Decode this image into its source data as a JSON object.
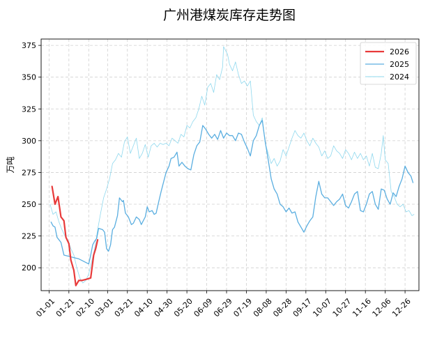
{
  "chart_data": {
    "type": "line",
    "title": "广州港煤炭库存走势图",
    "xlabel": "",
    "ylabel": "万吨",
    "x_tick_labels": [
      "01-01",
      "01-21",
      "02-10",
      "03-01",
      "03-21",
      "04-10",
      "04-30",
      "05-20",
      "06-09",
      "06-29",
      "07-19",
      "08-08",
      "08-28",
      "09-17",
      "10-07",
      "10-27",
      "11-16",
      "12-06",
      "12-26"
    ],
    "x_tick_days": [
      0,
      20,
      40,
      59,
      79,
      99,
      119,
      139,
      159,
      179,
      199,
      219,
      239,
      259,
      279,
      299,
      319,
      339,
      359
    ],
    "xlim": [
      -8,
      373
    ],
    "y_ticks": [
      200,
      225,
      250,
      275,
      300,
      325,
      350,
      375
    ],
    "ylim": [
      182,
      380
    ],
    "grid": true,
    "legend_position": "top-right",
    "series": [
      {
        "name": "2026",
        "color": "#e83a3a",
        "stroke_width": 2.2,
        "points": [
          [
            3,
            264
          ],
          [
            6,
            250
          ],
          [
            9,
            256
          ],
          [
            12,
            240
          ],
          [
            15,
            237
          ],
          [
            17,
            224
          ],
          [
            20,
            219
          ],
          [
            22,
            206
          ],
          [
            25,
            198
          ],
          [
            27,
            186
          ],
          [
            30,
            190
          ],
          [
            33,
            190
          ],
          [
            38,
            191
          ],
          [
            42,
            192
          ],
          [
            45,
            210
          ],
          [
            47,
            215
          ],
          [
            49,
            222
          ]
        ]
      },
      {
        "name": "2025",
        "color": "#5aaee0",
        "stroke_width": 1.3,
        "points": [
          [
            2,
            236
          ],
          [
            4,
            233
          ],
          [
            6,
            232
          ],
          [
            8,
            224
          ],
          [
            10,
            222
          ],
          [
            12,
            220
          ],
          [
            15,
            210
          ],
          [
            20,
            209
          ],
          [
            25,
            208
          ],
          [
            30,
            207
          ],
          [
            35,
            205
          ],
          [
            40,
            203
          ],
          [
            42,
            210
          ],
          [
            44,
            218
          ],
          [
            46,
            221
          ],
          [
            48,
            223
          ],
          [
            50,
            231
          ],
          [
            54,
            230
          ],
          [
            56,
            228
          ],
          [
            58,
            215
          ],
          [
            60,
            213
          ],
          [
            62,
            218
          ],
          [
            64,
            230
          ],
          [
            66,
            232
          ],
          [
            69,
            241
          ],
          [
            71,
            255
          ],
          [
            74,
            252
          ],
          [
            75,
            253
          ],
          [
            77,
            243
          ],
          [
            80,
            240
          ],
          [
            83,
            234
          ],
          [
            85,
            235
          ],
          [
            88,
            240
          ],
          [
            91,
            238
          ],
          [
            93,
            234
          ],
          [
            97,
            240
          ],
          [
            99,
            248
          ],
          [
            101,
            244
          ],
          [
            104,
            245
          ],
          [
            106,
            242
          ],
          [
            108,
            243
          ],
          [
            110,
            250
          ],
          [
            113,
            260
          ],
          [
            115,
            266
          ],
          [
            118,
            275
          ],
          [
            121,
            280
          ],
          [
            123,
            286
          ],
          [
            126,
            287
          ],
          [
            129,
            291
          ],
          [
            131,
            280
          ],
          [
            134,
            283
          ],
          [
            137,
            280
          ],
          [
            140,
            278
          ],
          [
            143,
            277
          ],
          [
            146,
            289
          ],
          [
            149,
            296
          ],
          [
            152,
            299
          ],
          [
            155,
            312
          ],
          [
            158,
            309
          ],
          [
            161,
            305
          ],
          [
            164,
            302
          ],
          [
            167,
            305
          ],
          [
            170,
            301
          ],
          [
            173,
            308
          ],
          [
            176,
            302
          ],
          [
            179,
            306
          ],
          [
            182,
            304
          ],
          [
            185,
            304
          ],
          [
            188,
            300
          ],
          [
            191,
            306
          ],
          [
            194,
            305
          ],
          [
            197,
            299
          ],
          [
            200,
            294
          ],
          [
            203,
            288
          ],
          [
            206,
            300
          ],
          [
            209,
            304
          ],
          [
            212,
            312
          ],
          [
            215,
            316
          ],
          [
            218,
            299
          ],
          [
            221,
            285
          ],
          [
            224,
            270
          ],
          [
            227,
            262
          ],
          [
            230,
            258
          ],
          [
            233,
            250
          ],
          [
            236,
            248
          ],
          [
            239,
            244
          ],
          [
            242,
            247
          ],
          [
            245,
            243
          ],
          [
            248,
            244
          ],
          [
            251,
            236
          ],
          [
            254,
            232
          ],
          [
            257,
            228
          ],
          [
            260,
            233
          ],
          [
            263,
            237
          ],
          [
            266,
            240
          ],
          [
            269,
            256
          ],
          [
            272,
            268
          ],
          [
            275,
            258
          ],
          [
            278,
            255
          ],
          [
            281,
            255
          ],
          [
            284,
            252
          ],
          [
            287,
            249
          ],
          [
            290,
            252
          ],
          [
            293,
            254
          ],
          [
            296,
            258
          ],
          [
            299,
            249
          ],
          [
            302,
            247
          ],
          [
            305,
            252
          ],
          [
            308,
            258
          ],
          [
            311,
            260
          ],
          [
            314,
            245
          ],
          [
            317,
            244
          ],
          [
            320,
            250
          ],
          [
            323,
            258
          ],
          [
            326,
            260
          ],
          [
            329,
            250
          ],
          [
            332,
            246
          ],
          [
            335,
            262
          ],
          [
            338,
            261
          ],
          [
            341,
            254
          ],
          [
            344,
            250
          ],
          [
            347,
            259
          ],
          [
            350,
            256
          ],
          [
            353,
            264
          ],
          [
            356,
            270
          ],
          [
            359,
            280
          ],
          [
            362,
            275
          ],
          [
            365,
            272
          ],
          [
            367,
            267
          ]
        ]
      },
      {
        "name": "2024",
        "color": "#8ed8ee",
        "stroke_width": 0.8,
        "points": [
          [
            1,
            250
          ],
          [
            4,
            242
          ],
          [
            7,
            244
          ],
          [
            10,
            236
          ],
          [
            13,
            230
          ],
          [
            16,
            225
          ],
          [
            19,
            222
          ],
          [
            22,
            215
          ],
          [
            25,
            210
          ],
          [
            28,
            200
          ],
          [
            31,
            192
          ],
          [
            34,
            188
          ],
          [
            37,
            190
          ],
          [
            40,
            195
          ],
          [
            43,
            205
          ],
          [
            46,
            215
          ],
          [
            49,
            230
          ],
          [
            52,
            243
          ],
          [
            55,
            255
          ],
          [
            58,
            262
          ],
          [
            61,
            270
          ],
          [
            64,
            282
          ],
          [
            67,
            285
          ],
          [
            70,
            290
          ],
          [
            73,
            287
          ],
          [
            76,
            299
          ],
          [
            79,
            303
          ],
          [
            82,
            290
          ],
          [
            85,
            296
          ],
          [
            88,
            302
          ],
          [
            91,
            286
          ],
          [
            94,
            290
          ],
          [
            97,
            297
          ],
          [
            100,
            287
          ],
          [
            103,
            296
          ],
          [
            106,
            298
          ],
          [
            109,
            295
          ],
          [
            112,
            298
          ],
          [
            115,
            297
          ],
          [
            118,
            298
          ],
          [
            121,
            296
          ],
          [
            124,
            302
          ],
          [
            127,
            300
          ],
          [
            130,
            298
          ],
          [
            133,
            305
          ],
          [
            136,
            303
          ],
          [
            139,
            312
          ],
          [
            142,
            310
          ],
          [
            145,
            315
          ],
          [
            148,
            318
          ],
          [
            151,
            325
          ],
          [
            154,
            335
          ],
          [
            157,
            328
          ],
          [
            160,
            342
          ],
          [
            163,
            345
          ],
          [
            166,
            338
          ],
          [
            169,
            352
          ],
          [
            172,
            348
          ],
          [
            175,
            358
          ],
          [
            176,
            374
          ],
          [
            178,
            371
          ],
          [
            180,
            368
          ],
          [
            182,
            360
          ],
          [
            185,
            355
          ],
          [
            188,
            362
          ],
          [
            191,
            352
          ],
          [
            194,
            345
          ],
          [
            197,
            347
          ],
          [
            200,
            343
          ],
          [
            203,
            347
          ],
          [
            206,
            320
          ],
          [
            209,
            315
          ],
          [
            212,
            312
          ],
          [
            215,
            318
          ],
          [
            218,
            298
          ],
          [
            221,
            290
          ],
          [
            224,
            282
          ],
          [
            227,
            286
          ],
          [
            230,
            280
          ],
          [
            233,
            284
          ],
          [
            236,
            293
          ],
          [
            239,
            288
          ],
          [
            242,
            295
          ],
          [
            245,
            302
          ],
          [
            248,
            308
          ],
          [
            251,
            304
          ],
          [
            254,
            302
          ],
          [
            257,
            306
          ],
          [
            260,
            300
          ],
          [
            263,
            296
          ],
          [
            266,
            302
          ],
          [
            269,
            298
          ],
          [
            272,
            295
          ],
          [
            275,
            288
          ],
          [
            278,
            292
          ],
          [
            281,
            286
          ],
          [
            284,
            288
          ],
          [
            287,
            296
          ],
          [
            290,
            292
          ],
          [
            293,
            290
          ],
          [
            296,
            286
          ],
          [
            299,
            293
          ],
          [
            302,
            290
          ],
          [
            305,
            285
          ],
          [
            308,
            291
          ],
          [
            311,
            286
          ],
          [
            314,
            290
          ],
          [
            317,
            285
          ],
          [
            320,
            288
          ],
          [
            323,
            280
          ],
          [
            326,
            290
          ],
          [
            329,
            279
          ],
          [
            332,
            278
          ],
          [
            335,
            290
          ],
          [
            337,
            304
          ],
          [
            339,
            285
          ],
          [
            342,
            282
          ],
          [
            345,
            260
          ],
          [
            348,
            256
          ],
          [
            351,
            250
          ],
          [
            354,
            248
          ],
          [
            357,
            250
          ],
          [
            360,
            244
          ],
          [
            363,
            245
          ],
          [
            366,
            241
          ],
          [
            368,
            242
          ]
        ]
      }
    ]
  }
}
